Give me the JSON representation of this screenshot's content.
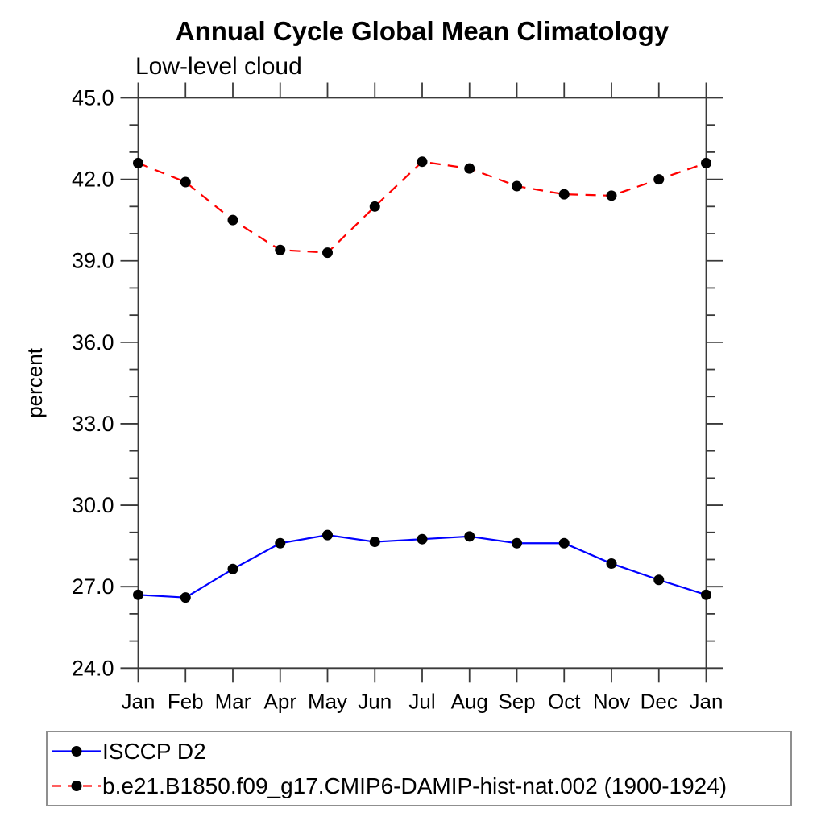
{
  "chart": {
    "title": "Annual Cycle Global Mean Climatology",
    "subtitle": "Low-level cloud"
  },
  "chart_data": {
    "type": "line",
    "title": "Annual Cycle Global Mean Climatology",
    "subtitle": "Low-level cloud",
    "xlabel": "",
    "ylabel": "percent",
    "categories": [
      "Jan",
      "Feb",
      "Mar",
      "Apr",
      "May",
      "Jun",
      "Jul",
      "Aug",
      "Sep",
      "Oct",
      "Nov",
      "Dec",
      "Jan"
    ],
    "ylim": [
      24.0,
      45.0
    ],
    "ytick_major_interval": 3.0,
    "ytick_minor_interval": 1.0,
    "ytick_labels": [
      "24.0",
      "27.0",
      "30.0",
      "33.0",
      "36.0",
      "39.0",
      "42.0",
      "45.0"
    ],
    "grid": false,
    "legend_position": "bottom-left-box",
    "series": [
      {
        "name": "ISCCP D2",
        "color": "#0000ff",
        "line_style": "solid",
        "marker": "filled-circle",
        "marker_color": "#000000",
        "values": [
          26.7,
          26.6,
          27.65,
          28.6,
          28.9,
          28.65,
          28.75,
          28.85,
          28.6,
          28.6,
          27.85,
          27.25,
          26.7
        ]
      },
      {
        "name": "b.e21.B1850.f09_g17.CMIP6-DAMIP-hist-nat.002 (1900-1924)",
        "color": "#ff0000",
        "line_style": "dashed",
        "marker": "filled-circle",
        "marker_color": "#000000",
        "values": [
          42.6,
          41.9,
          40.5,
          39.4,
          39.3,
          41.0,
          42.65,
          42.4,
          41.75,
          41.45,
          41.4,
          42.0,
          42.6
        ]
      }
    ]
  },
  "colors": {
    "background": "#ffffff",
    "axis": "#3a3a3a",
    "text": "#000000",
    "series_blue": "#0000ff",
    "series_red": "#ff0000",
    "marker": "#000000",
    "legend_border": "#8f8f8f"
  }
}
